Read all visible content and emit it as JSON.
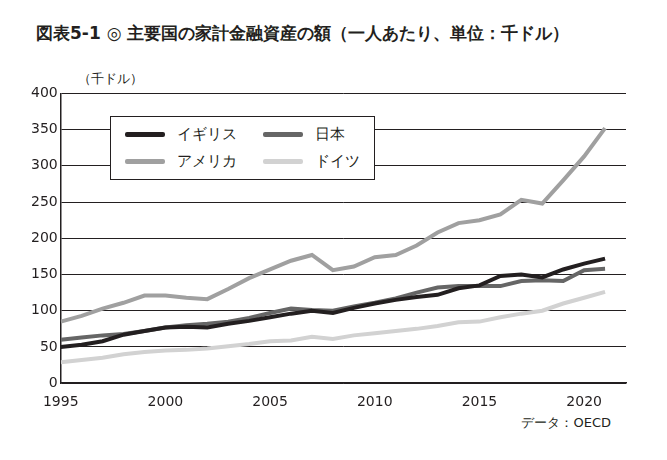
{
  "chart_data": {
    "type": "line",
    "title": "図表5-1 ◎ 主要国の家計金融資産の額（一人あたり、単位：千ドル）",
    "y_label": "（千ドル）",
    "source": "データ：OECD",
    "x": [
      1995,
      1996,
      1997,
      1998,
      1999,
      2000,
      2001,
      2002,
      2003,
      2004,
      2005,
      2006,
      2007,
      2008,
      2009,
      2010,
      2011,
      2012,
      2013,
      2014,
      2015,
      2016,
      2017,
      2018,
      2019,
      2020,
      2021
    ],
    "series": [
      {
        "name": "イギリス",
        "color": "#231f20",
        "values": [
          50,
          53,
          58,
          67,
          72,
          77,
          78,
          77,
          82,
          86,
          91,
          96,
          100,
          97,
          104,
          110,
          115,
          119,
          122,
          131,
          135,
          148,
          150,
          146,
          157,
          165,
          172
        ]
      },
      {
        "name": "日本",
        "color": "#666666",
        "values": [
          60,
          63,
          66,
          68,
          72,
          77,
          80,
          82,
          85,
          90,
          97,
          103,
          101,
          100,
          106,
          111,
          117,
          125,
          132,
          134,
          134,
          134,
          141,
          142,
          141,
          156,
          158
        ]
      },
      {
        "name": "アメリカ",
        "color": "#a0a0a0",
        "values": [
          85,
          93,
          103,
          111,
          121,
          121,
          118,
          116,
          130,
          145,
          157,
          169,
          177,
          156,
          161,
          174,
          177,
          190,
          208,
          221,
          225,
          233,
          253,
          248,
          280,
          313,
          352
        ]
      },
      {
        "name": "ドイツ",
        "color": "#d2d2d2",
        "values": [
          29,
          32,
          35,
          40,
          43,
          45,
          46,
          48,
          51,
          54,
          58,
          59,
          64,
          61,
          66,
          69,
          72,
          75,
          79,
          84,
          85,
          91,
          96,
          100,
          110,
          118,
          126
        ]
      }
    ],
    "xlim": [
      1995,
      2022
    ],
    "xticks": [
      1995,
      2000,
      2005,
      2010,
      2015,
      2020
    ],
    "ylim": [
      0,
      400
    ],
    "yticks": [
      0,
      50,
      100,
      150,
      200,
      250,
      300,
      350,
      400
    ],
    "grid": true,
    "legend": "upper left",
    "line_style": "solid",
    "marker": "none"
  }
}
